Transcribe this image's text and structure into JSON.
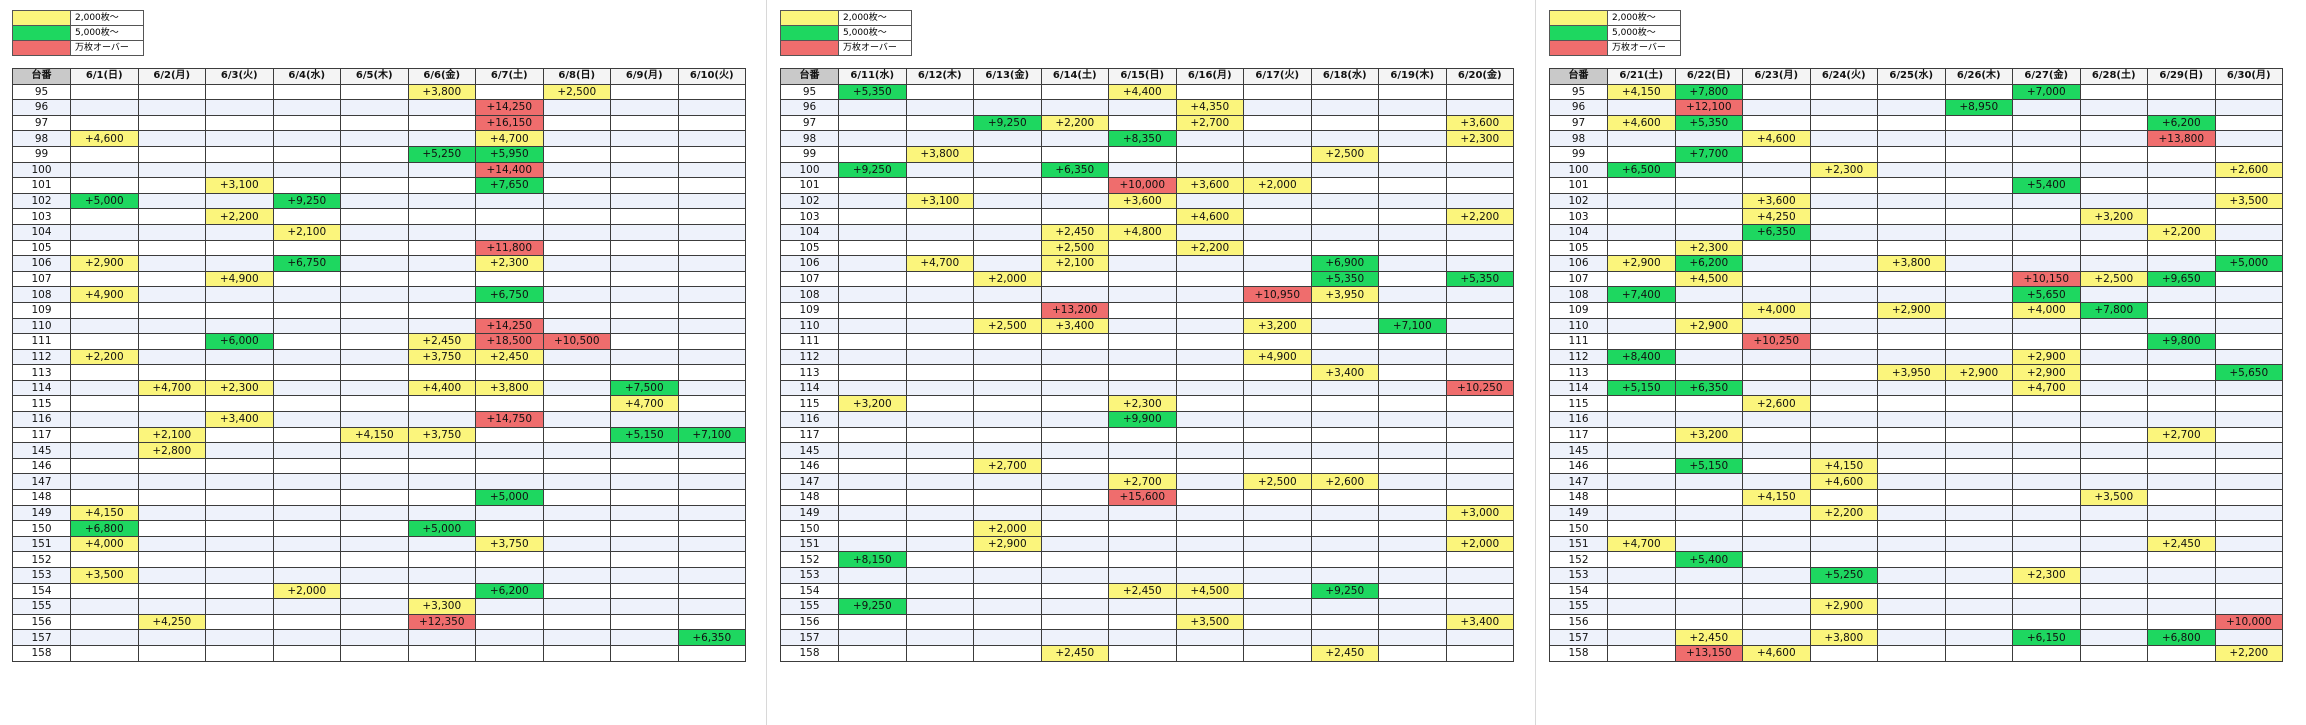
{
  "colors": {
    "yellow": "#fbf57c",
    "green": "#1ed760",
    "red": "#ef6d6d"
  },
  "legend": [
    {
      "color": "yellow",
      "label": "2,000枚～"
    },
    {
      "color": "green",
      "label": "5,000枚～"
    },
    {
      "color": "red",
      "label": "万枚オーバー"
    }
  ],
  "tables": [
    {
      "header_label": "台番",
      "dates": [
        "6/1(日)",
        "6/2(月)",
        "6/3(火)",
        "6/4(水)",
        "6/5(木)",
        "6/6(金)",
        "6/7(土)",
        "6/8(日)",
        "6/9(月)",
        "6/10(火)"
      ],
      "rows": [
        {
          "m": "95",
          "c": {
            "5": "+3,800",
            "7": "+2,500"
          }
        },
        {
          "m": "96",
          "c": {
            "6": "+14,250"
          }
        },
        {
          "m": "97",
          "c": {
            "6": "+16,150"
          }
        },
        {
          "m": "98",
          "c": {
            "0": "+4,600",
            "6": "+4,700"
          }
        },
        {
          "m": "99",
          "c": {
            "5": "+5,250",
            "6": "+5,950"
          }
        },
        {
          "m": "100",
          "c": {
            "6": "+14,400"
          }
        },
        {
          "m": "101",
          "c": {
            "2": "+3,100",
            "6": "+7,650"
          }
        },
        {
          "m": "102",
          "c": {
            "0": "+5,000",
            "3": "+9,250"
          }
        },
        {
          "m": "103",
          "c": {
            "2": "+2,200"
          }
        },
        {
          "m": "104",
          "c": {
            "3": "+2,100"
          }
        },
        {
          "m": "105",
          "c": {
            "6": "+11,800"
          }
        },
        {
          "m": "106",
          "c": {
            "0": "+2,900",
            "3": "+6,750",
            "6": "+2,300"
          }
        },
        {
          "m": "107",
          "c": {
            "2": "+4,900"
          }
        },
        {
          "m": "108",
          "c": {
            "0": "+4,900",
            "6": "+6,750"
          }
        },
        {
          "m": "109",
          "c": {}
        },
        {
          "m": "110",
          "c": {
            "6": "+14,250"
          }
        },
        {
          "m": "111",
          "c": {
            "2": "+6,000",
            "5": "+2,450",
            "6": "+18,500",
            "7": "+10,500"
          }
        },
        {
          "m": "112",
          "c": {
            "0": "+2,200",
            "5": "+3,750",
            "6": "+2,450"
          }
        },
        {
          "m": "113",
          "c": {}
        },
        {
          "m": "114",
          "c": {
            "1": "+4,700",
            "2": "+2,300",
            "5": "+4,400",
            "6": "+3,800",
            "8": "+7,500"
          }
        },
        {
          "m": "115",
          "c": {
            "8": "+4,700"
          }
        },
        {
          "m": "116",
          "c": {
            "2": "+3,400",
            "6": "+14,750"
          }
        },
        {
          "m": "117",
          "c": {
            "1": "+2,100",
            "4": "+4,150",
            "5": "+3,750",
            "8": "+5,150",
            "9": "+7,100"
          }
        },
        {
          "m": "145",
          "c": {
            "1": "+2,800"
          }
        },
        {
          "m": "146",
          "c": {}
        },
        {
          "m": "147",
          "c": {}
        },
        {
          "m": "148",
          "c": {
            "6": "+5,000"
          }
        },
        {
          "m": "149",
          "c": {
            "0": "+4,150"
          }
        },
        {
          "m": "150",
          "c": {
            "0": "+6,800",
            "5": "+5,000"
          }
        },
        {
          "m": "151",
          "c": {
            "0": "+4,000",
            "6": "+3,750"
          }
        },
        {
          "m": "152",
          "c": {}
        },
        {
          "m": "153",
          "c": {
            "0": "+3,500"
          }
        },
        {
          "m": "154",
          "c": {
            "3": "+2,000",
            "6": "+6,200"
          }
        },
        {
          "m": "155",
          "c": {
            "5": "+3,300"
          }
        },
        {
          "m": "156",
          "c": {
            "1": "+4,250",
            "5": "+12,350"
          }
        },
        {
          "m": "157",
          "c": {
            "9": "+6,350"
          }
        },
        {
          "m": "158",
          "c": {}
        }
      ]
    },
    {
      "header_label": "台番",
      "dates": [
        "6/11(水)",
        "6/12(木)",
        "6/13(金)",
        "6/14(土)",
        "6/15(日)",
        "6/16(月)",
        "6/17(火)",
        "6/18(水)",
        "6/19(木)",
        "6/20(金)"
      ],
      "rows": [
        {
          "m": "95",
          "c": {
            "0": "+5,350",
            "4": "+4,400"
          }
        },
        {
          "m": "96",
          "c": {
            "5": "+4,350"
          }
        },
        {
          "m": "97",
          "c": {
            "2": "+9,250",
            "3": "+2,200",
            "5": "+2,700",
            "9": "+3,600"
          }
        },
        {
          "m": "98",
          "c": {
            "4": "+8,350",
            "9": "+2,300"
          }
        },
        {
          "m": "99",
          "c": {
            "1": "+3,800",
            "7": "+2,500"
          }
        },
        {
          "m": "100",
          "c": {
            "0": "+9,250",
            "3": "+6,350"
          }
        },
        {
          "m": "101",
          "c": {
            "4": "+10,000",
            "5": "+3,600",
            "6": "+2,000"
          }
        },
        {
          "m": "102",
          "c": {
            "1": "+3,100",
            "4": "+3,600"
          }
        },
        {
          "m": "103",
          "c": {
            "5": "+4,600",
            "9": "+2,200"
          }
        },
        {
          "m": "104",
          "c": {
            "3": "+2,450",
            "4": "+4,800"
          }
        },
        {
          "m": "105",
          "c": {
            "3": "+2,500",
            "5": "+2,200"
          }
        },
        {
          "m": "106",
          "c": {
            "1": "+4,700",
            "3": "+2,100",
            "7": "+6,900"
          }
        },
        {
          "m": "107",
          "c": {
            "2": "+2,000",
            "7": "+5,350",
            "9": "+5,350"
          }
        },
        {
          "m": "108",
          "c": {
            "6": "+10,950",
            "7": "+3,950"
          }
        },
        {
          "m": "109",
          "c": {
            "3": "+13,200"
          }
        },
        {
          "m": "110",
          "c": {
            "2": "+2,500",
            "3": "+3,400",
            "6": "+3,200",
            "8": "+7,100"
          }
        },
        {
          "m": "111",
          "c": {}
        },
        {
          "m": "112",
          "c": {
            "6": "+4,900"
          }
        },
        {
          "m": "113",
          "c": {
            "7": "+3,400"
          }
        },
        {
          "m": "114",
          "c": {
            "9": "+10,250"
          }
        },
        {
          "m": "115",
          "c": {
            "0": "+3,200",
            "4": "+2,300"
          }
        },
        {
          "m": "116",
          "c": {
            "4": "+9,900"
          }
        },
        {
          "m": "117",
          "c": {}
        },
        {
          "m": "145",
          "c": {}
        },
        {
          "m": "146",
          "c": {
            "2": "+2,700"
          }
        },
        {
          "m": "147",
          "c": {
            "4": "+2,700",
            "6": "+2,500",
            "7": "+2,600"
          }
        },
        {
          "m": "148",
          "c": {
            "4": "+15,600"
          }
        },
        {
          "m": "149",
          "c": {
            "9": "+3,000"
          }
        },
        {
          "m": "150",
          "c": {
            "2": "+2,000"
          }
        },
        {
          "m": "151",
          "c": {
            "2": "+2,900",
            "9": "+2,000"
          }
        },
        {
          "m": "152",
          "c": {
            "0": "+8,150"
          }
        },
        {
          "m": "153",
          "c": {}
        },
        {
          "m": "154",
          "c": {
            "4": "+2,450",
            "5": "+4,500",
            "7": "+9,250"
          }
        },
        {
          "m": "155",
          "c": {
            "0": "+9,250"
          }
        },
        {
          "m": "156",
          "c": {
            "5": "+3,500",
            "9": "+3,400"
          }
        },
        {
          "m": "157",
          "c": {}
        },
        {
          "m": "158",
          "c": {
            "3": "+2,450",
            "7": "+2,450"
          }
        }
      ]
    },
    {
      "header_label": "台番",
      "dates": [
        "6/21(土)",
        "6/22(日)",
        "6/23(月)",
        "6/24(火)",
        "6/25(水)",
        "6/26(木)",
        "6/27(金)",
        "6/28(土)",
        "6/29(日)",
        "6/30(月)"
      ],
      "rows": [
        {
          "m": "95",
          "c": {
            "0": "+4,150",
            "1": "+7,800",
            "6": "+7,000"
          }
        },
        {
          "m": "96",
          "c": {
            "1": "+12,100",
            "5": "+8,950"
          }
        },
        {
          "m": "97",
          "c": {
            "0": "+4,600",
            "1": "+5,350",
            "8": "+6,200"
          }
        },
        {
          "m": "98",
          "c": {
            "2": "+4,600",
            "8": "+13,800"
          }
        },
        {
          "m": "99",
          "c": {
            "1": "+7,700"
          }
        },
        {
          "m": "100",
          "c": {
            "0": "+6,500",
            "3": "+2,300",
            "9": "+2,600"
          }
        },
        {
          "m": "101",
          "c": {
            "6": "+5,400"
          }
        },
        {
          "m": "102",
          "c": {
            "2": "+3,600",
            "9": "+3,500"
          }
        },
        {
          "m": "103",
          "c": {
            "2": "+4,250",
            "7": "+3,200"
          }
        },
        {
          "m": "104",
          "c": {
            "2": "+6,350",
            "8": "+2,200"
          }
        },
        {
          "m": "105",
          "c": {
            "1": "+2,300"
          }
        },
        {
          "m": "106",
          "c": {
            "0": "+2,900",
            "1": "+6,200",
            "4": "+3,800",
            "9": "+5,000"
          }
        },
        {
          "m": "107",
          "c": {
            "1": "+4,500",
            "6": "+10,150",
            "7": "+2,500",
            "8": "+9,650"
          }
        },
        {
          "m": "108",
          "c": {
            "0": "+7,400",
            "6": "+5,650"
          }
        },
        {
          "m": "109",
          "c": {
            "2": "+4,000",
            "4": "+2,900",
            "6": "+4,000",
            "7": "+7,800"
          }
        },
        {
          "m": "110",
          "c": {
            "1": "+2,900"
          }
        },
        {
          "m": "111",
          "c": {
            "2": "+10,250",
            "8": "+9,800"
          }
        },
        {
          "m": "112",
          "c": {
            "0": "+8,400",
            "6": "+2,900"
          }
        },
        {
          "m": "113",
          "c": {
            "4": "+3,950",
            "5": "+2,900",
            "6": "+2,900",
            "9": "+5,650"
          }
        },
        {
          "m": "114",
          "c": {
            "0": "+5,150",
            "1": "+6,350",
            "6": "+4,700"
          }
        },
        {
          "m": "115",
          "c": {
            "2": "+2,600"
          }
        },
        {
          "m": "116",
          "c": {}
        },
        {
          "m": "117",
          "c": {
            "1": "+3,200",
            "8": "+2,700"
          }
        },
        {
          "m": "145",
          "c": {}
        },
        {
          "m": "146",
          "c": {
            "1": "+5,150",
            "3": "+4,150"
          }
        },
        {
          "m": "147",
          "c": {
            "3": "+4,600"
          }
        },
        {
          "m": "148",
          "c": {
            "2": "+4,150",
            "7": "+3,500"
          }
        },
        {
          "m": "149",
          "c": {
            "3": "+2,200"
          }
        },
        {
          "m": "150",
          "c": {}
        },
        {
          "m": "151",
          "c": {
            "0": "+4,700",
            "8": "+2,450"
          }
        },
        {
          "m": "152",
          "c": {
            "1": "+5,400"
          }
        },
        {
          "m": "153",
          "c": {
            "3": "+5,250",
            "6": "+2,300"
          }
        },
        {
          "m": "154",
          "c": {}
        },
        {
          "m": "155",
          "c": {
            "3": "+2,900"
          }
        },
        {
          "m": "156",
          "c": {
            "9": "+10,000"
          }
        },
        {
          "m": "157",
          "c": {
            "1": "+2,450",
            "3": "+3,800",
            "6": "+6,150",
            "8": "+6,800"
          }
        },
        {
          "m": "158",
          "c": {
            "1": "+13,150",
            "2": "+4,600",
            "9": "+2,200"
          }
        }
      ]
    }
  ]
}
